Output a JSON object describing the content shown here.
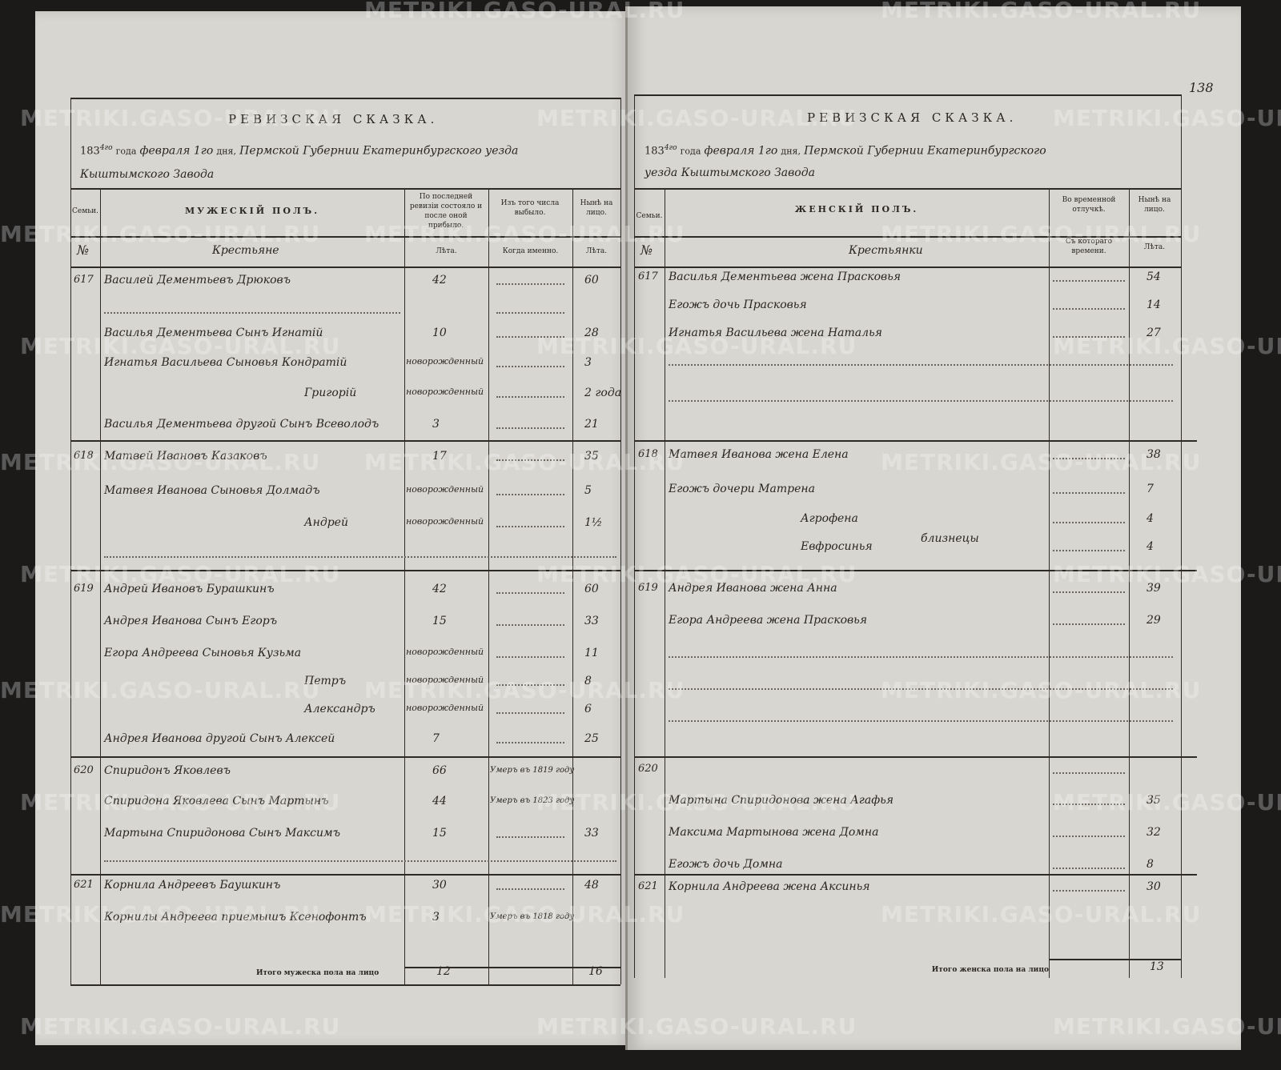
{
  "watermark": "METRIKI.GASO-URAL.RU",
  "page_number": "138",
  "left": {
    "title": "РЕВИЗСКАЯ СКАЗКА.",
    "year_printed": "183",
    "year_hand": "4го",
    "goda": "года",
    "date_hand": "февраля 1го",
    "dnya": "дня,",
    "place_hand": "Пермской Губернии Екатеринбургского уезда",
    "place_hand2": "Кыштымского Завода",
    "headers": {
      "family": "Семьи.",
      "sex": "МУЖЕСКIЙ ПОЛЪ.",
      "last_revision": "По последней ревизiи состояло и после оной прибыло.",
      "left_out": "Изъ того числа выбыло.",
      "present": "Нынѣ на лицо.",
      "no": "№",
      "estate": "Крестьяне",
      "years1": "Лѣта.",
      "when": "Когда именно.",
      "years2": "Лѣта."
    },
    "rows": [
      {
        "no": "617",
        "name": "Василей Дементьевъ Дрюковъ",
        "rev": "42",
        "out": "",
        "now": "60"
      },
      {
        "no": "",
        "name": "",
        "rev": "",
        "out": "",
        "now": ""
      },
      {
        "no": "",
        "name": "Василья Дементьева Сынъ Игнатiй",
        "rev": "10",
        "out": "",
        "now": "28"
      },
      {
        "no": "",
        "name": "Игнатья Васильева Сыновья Кондратiй",
        "rev": "новорожденный",
        "out": "",
        "now": "3"
      },
      {
        "no": "",
        "name": "Григорiй",
        "rev": "новорожденный",
        "out": "",
        "now": "2 года"
      },
      {
        "no": "",
        "name": "Василья Дементьева другой Сынъ Всеволодъ",
        "rev": "3",
        "out": "",
        "now": "21"
      },
      {
        "no": "618",
        "name": "Матвей Ивановъ Казаковъ",
        "rev": "17",
        "out": "",
        "now": "35"
      },
      {
        "no": "",
        "name": "Матвея Иванова Сыновья Долмадъ",
        "rev": "новорожденный",
        "out": "",
        "now": "5"
      },
      {
        "no": "",
        "name": "Андрей",
        "rev": "новорожденный",
        "out": "",
        "now": "1½"
      },
      {
        "no": "619",
        "name": "Андрей Ивановъ Бурашкинъ",
        "rev": "42",
        "out": "",
        "now": "60"
      },
      {
        "no": "",
        "name": "Андрея Иванова Сынъ Егоръ",
        "rev": "15",
        "out": "",
        "now": "33"
      },
      {
        "no": "",
        "name": "Егора Андреева Сыновья Кузьма",
        "rev": "новорожденный",
        "out": "",
        "now": "11"
      },
      {
        "no": "",
        "name": "Петръ",
        "rev": "новорожденный",
        "out": "",
        "now": "8"
      },
      {
        "no": "",
        "name": "Александръ",
        "rev": "новорожденный",
        "out": "",
        "now": "6"
      },
      {
        "no": "",
        "name": "Андрея Иванова другой Сынъ Алексей",
        "rev": "7",
        "out": "",
        "now": "25"
      },
      {
        "no": "620",
        "name": "Спиридонъ Яковлевъ",
        "rev": "66",
        "out": "Умеръ въ 1819 году",
        "now": ""
      },
      {
        "no": "",
        "name": "Спиридона Яковлева Сынъ Мартынъ",
        "rev": "44",
        "out": "Умеръ въ 1823 году",
        "now": ""
      },
      {
        "no": "",
        "name": "Мартына Спиридонова Сынъ Максимъ",
        "rev": "15",
        "out": "",
        "now": "33"
      },
      {
        "no": "621",
        "name": "Корнила Андреевъ Баушкинъ",
        "rev": "30",
        "out": "",
        "now": "48"
      },
      {
        "no": "",
        "name": "Корнилы Андреева приемышъ Ксенофонтъ",
        "rev": "3",
        "out": "Умеръ въ 1818 году",
        "now": ""
      }
    ],
    "total_label": "Итого мужеска пола на лицо",
    "total_rev": "12",
    "total_now": "16"
  },
  "right": {
    "title": "РЕВИЗСКАЯ СКАЗКА.",
    "year_printed": "183",
    "year_hand": "4го",
    "goda": "года",
    "date_hand": "февраля 1го",
    "dnya": "дня,",
    "place_hand": "Пермской Губернии Екатеринбургского",
    "place_hand2": "уезда Кыштымского Завода",
    "headers": {
      "family": "Семьи.",
      "sex": "ЖЕНСКIЙ ПОЛЪ.",
      "absent": "Во временной отлучкѣ.",
      "present": "Нынѣ на лицо.",
      "no": "№",
      "estate": "Крестьянки",
      "since": "Съ котораго времени.",
      "years": "Лѣта."
    },
    "rows": [
      {
        "no": "617",
        "name": "Василья Дементьева жена Прасковья",
        "away": "",
        "now": "54"
      },
      {
        "no": "",
        "name": "Егожъ дочь Прасковья",
        "away": "",
        "now": "14"
      },
      {
        "no": "",
        "name": "Игнатья Васильева жена Наталья",
        "away": "",
        "now": "27"
      },
      {
        "no": "618",
        "name": "Матвея Иванова жена Елена",
        "away": "",
        "now": "38"
      },
      {
        "no": "",
        "name": "Егожъ дочери Матрена",
        "away": "",
        "now": "7"
      },
      {
        "no": "",
        "name": "Агрофена",
        "away": "",
        "now": "4"
      },
      {
        "no": "",
        "name": "Евфросинья",
        "away": "",
        "now": "4"
      },
      {
        "no": "619",
        "name": "Андрея Иванова жена Анна",
        "away": "",
        "now": "39"
      },
      {
        "no": "",
        "name": "Егора Андреева жена Прасковья",
        "away": "",
        "now": "29"
      },
      {
        "no": "620",
        "name": "",
        "away": "",
        "now": ""
      },
      {
        "no": "",
        "name": "Мартына Спиридонова жена Агафья",
        "away": "",
        "now": "35"
      },
      {
        "no": "",
        "name": "Максима Мартынова жена Домна",
        "away": "",
        "now": "32"
      },
      {
        "no": "",
        "name": "Егожъ дочь Домна",
        "away": "",
        "now": "8"
      },
      {
        "no": "621",
        "name": "Корнила Андреева жена Аксинья",
        "away": "",
        "now": "30"
      }
    ],
    "twins_note": "близнецы",
    "total_label": "Итого женска пола на лицо",
    "total_now": "13"
  }
}
